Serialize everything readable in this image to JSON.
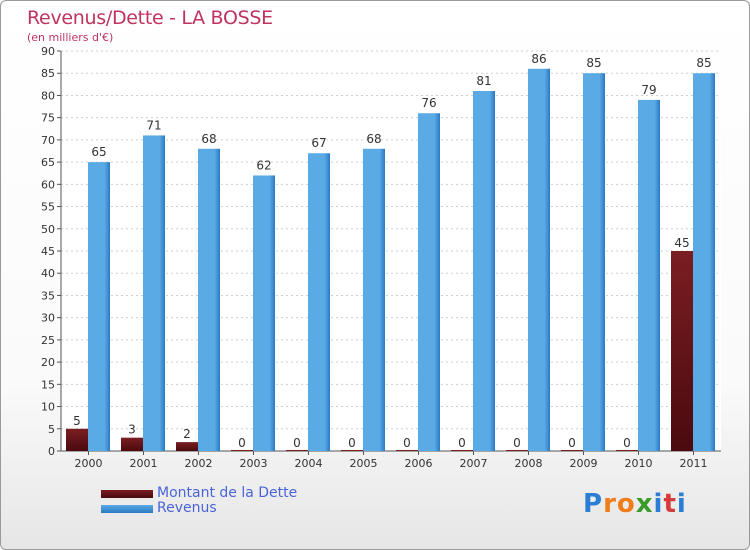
{
  "title": "Revenus/Dette - LA BOSSE",
  "subtitle": "(en milliers d'€)",
  "legend": {
    "debt_label": "Montant de la Dette",
    "revenue_label": "Revenus"
  },
  "logo": {
    "letters": [
      "P",
      "r",
      "o",
      "x",
      "i",
      "t",
      "i"
    ],
    "colors": [
      "#2a7fd4",
      "#ee7d1a",
      "#ee7d1a",
      "#3a9a2a",
      "#2a7fd4",
      "#d63a3a",
      "#2a7fd4"
    ]
  },
  "colors": {
    "debt": "#7a1e22",
    "debt_dark": "#4a0a0e",
    "revenue": "#5aaae6",
    "revenue_dark": "#2a7ac4",
    "title": "#c0335f",
    "legend_text": "#4a64d8"
  },
  "chart_data": {
    "type": "bar",
    "title": "Revenus/Dette - LA BOSSE",
    "ylabel": "(en milliers d'€)",
    "xlabel": "",
    "ylim": [
      0,
      90
    ],
    "yticks": [
      0,
      5,
      10,
      15,
      20,
      25,
      30,
      35,
      40,
      45,
      50,
      55,
      60,
      65,
      70,
      75,
      80,
      85,
      90
    ],
    "categories": [
      "2000",
      "2001",
      "2002",
      "2003",
      "2004",
      "2005",
      "2006",
      "2007",
      "2008",
      "2009",
      "2010",
      "2011"
    ],
    "series": [
      {
        "name": "Montant de la Dette",
        "values": [
          5,
          3,
          2,
          0,
          0,
          0,
          0,
          0,
          0,
          0,
          0,
          45
        ]
      },
      {
        "name": "Revenus",
        "values": [
          65,
          71,
          68,
          62,
          67,
          68,
          76,
          81,
          86,
          85,
          79,
          85
        ]
      }
    ]
  }
}
